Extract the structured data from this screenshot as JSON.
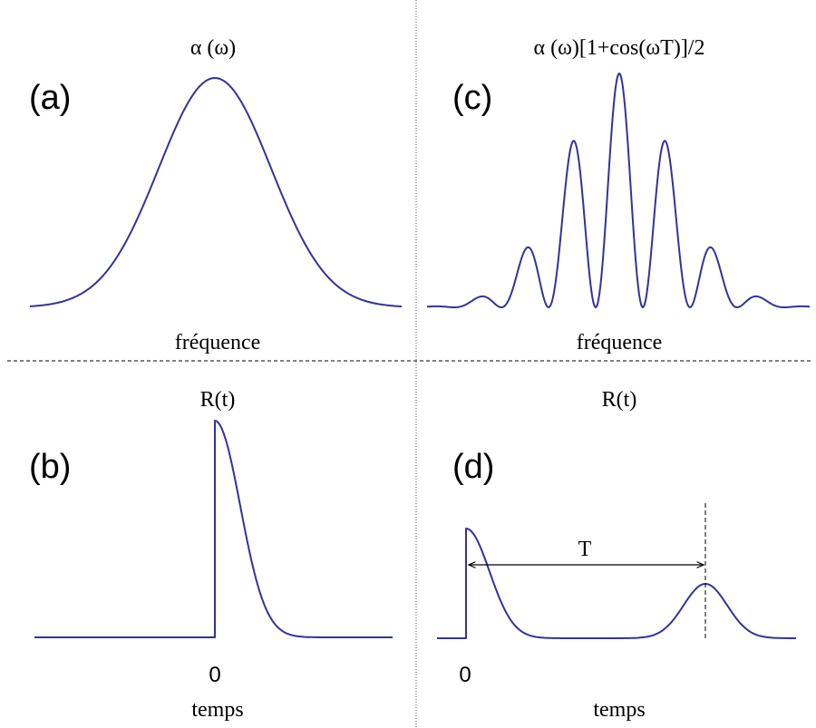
{
  "panels": {
    "a": {
      "tag": "(a)",
      "title": "α (ω)",
      "axis_label": "fréquence"
    },
    "b": {
      "tag": "(b)",
      "title": "R(t)",
      "zero_label": "0",
      "axis_label": "temps"
    },
    "c": {
      "tag": "(c)",
      "title": "α (ω)[1+cos(ωT)]/2",
      "axis_label": "fréquence"
    },
    "d": {
      "tag": "(d)",
      "title": "R(t)",
      "zero_label": "0",
      "axis_label": "temps",
      "delay_label": "T"
    }
  },
  "colors": {
    "curve": "#33339a",
    "text": "#000000"
  }
}
